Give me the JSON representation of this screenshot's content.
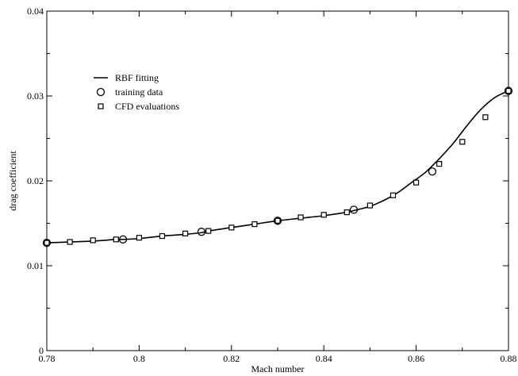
{
  "chart_data": {
    "type": "line",
    "title": "",
    "xlabel": "Mach number",
    "ylabel": "drag coefficient",
    "xlim": [
      0.78,
      0.88
    ],
    "ylim": [
      0,
      0.04
    ],
    "x_ticks": [
      0.78,
      0.8,
      0.82,
      0.84,
      0.86,
      0.88
    ],
    "x_tick_labels": [
      "0.78",
      "0.8",
      "0.82",
      "0.84",
      "0.86",
      "0.88"
    ],
    "y_ticks": [
      0,
      0.01,
      0.02,
      0.03,
      0.04
    ],
    "y_tick_labels": [
      "0",
      "0.01",
      "0.02",
      "0.03",
      "0.04"
    ],
    "grid": false,
    "legend_position": "upper-left",
    "series": [
      {
        "name": "RBF fitting",
        "style": "line",
        "x": [
          0.78,
          0.785,
          0.79,
          0.795,
          0.7965,
          0.8,
          0.805,
          0.81,
          0.8135,
          0.815,
          0.82,
          0.825,
          0.83,
          0.835,
          0.84,
          0.845,
          0.8465,
          0.85,
          0.853,
          0.856,
          0.859,
          0.862,
          0.865,
          0.868,
          0.871,
          0.874,
          0.877,
          0.88
        ],
        "y": [
          0.0127,
          0.0128,
          0.0129,
          0.0131,
          0.0131,
          0.0132,
          0.0135,
          0.0137,
          0.0139,
          0.0141,
          0.0145,
          0.0149,
          0.0153,
          0.0156,
          0.0159,
          0.0163,
          0.0165,
          0.017,
          0.0177,
          0.0186,
          0.0198,
          0.021,
          0.0226,
          0.0244,
          0.0265,
          0.0284,
          0.0298,
          0.0306
        ]
      },
      {
        "name": "training data",
        "style": "circle",
        "x": [
          0.78,
          0.7965,
          0.8135,
          0.83,
          0.8465,
          0.8635,
          0.88
        ],
        "y": [
          0.0127,
          0.0131,
          0.014,
          0.0153,
          0.0166,
          0.0211,
          0.0306
        ]
      },
      {
        "name": "CFD evaluations",
        "style": "square",
        "x": [
          0.78,
          0.785,
          0.79,
          0.795,
          0.8,
          0.805,
          0.81,
          0.815,
          0.82,
          0.825,
          0.83,
          0.835,
          0.84,
          0.845,
          0.85,
          0.855,
          0.86,
          0.865,
          0.87,
          0.875,
          0.88
        ],
        "y": [
          0.0127,
          0.0128,
          0.013,
          0.0131,
          0.0133,
          0.0135,
          0.0138,
          0.0141,
          0.0145,
          0.0149,
          0.0153,
          0.0157,
          0.016,
          0.0163,
          0.0171,
          0.0183,
          0.0198,
          0.022,
          0.0246,
          0.0275,
          0.0306
        ]
      }
    ],
    "legend": {
      "entries": [
        "RBF fitting",
        "training data",
        "CFD evaluations"
      ]
    }
  }
}
